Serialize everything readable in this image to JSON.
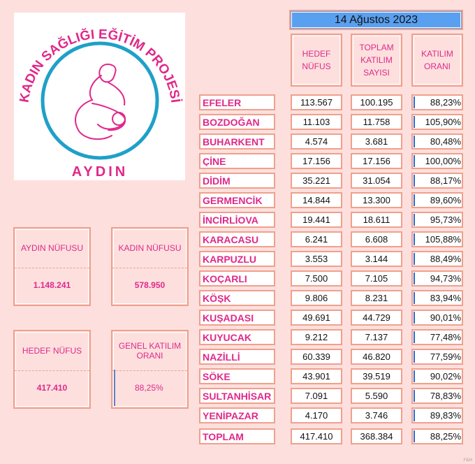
{
  "logo": {
    "title": "KADIN SAĞLIĞI EĞİTİM PROJESİ",
    "city": "AYDIN"
  },
  "cards": [
    {
      "label": "AYDIN NÜFUSU",
      "value": "1.148.241"
    },
    {
      "label": "KADIN NÜFUSU",
      "value": "578.950"
    },
    {
      "label": "HEDEF NÜFUS",
      "value": "417.410"
    }
  ],
  "overall": {
    "label": "GENEL KATILIM ORANI",
    "value": 88.25,
    "value_label": "88,25%"
  },
  "table": {
    "date": "14 Ağustos 2023",
    "headers": [
      "HEDEF NÜFUS",
      "TOPLAM KATILIM SAYISI",
      "KATILIM ORANI"
    ],
    "rows": [
      {
        "name": "EFELER",
        "target": "113.567",
        "total": "100.195",
        "rate": 88.23,
        "rate_label": "88,23%"
      },
      {
        "name": "BOZDOĞAN",
        "target": "11.103",
        "total": "11.758",
        "rate": 105.9,
        "rate_label": "105,90%"
      },
      {
        "name": "BUHARKENT",
        "target": "4.574",
        "total": "3.681",
        "rate": 80.48,
        "rate_label": "80,48%"
      },
      {
        "name": "ÇİNE",
        "target": "17.156",
        "total": "17.156",
        "rate": 100.0,
        "rate_label": "100,00%"
      },
      {
        "name": "DİDİM",
        "target": "35.221",
        "total": "31.054",
        "rate": 88.17,
        "rate_label": "88,17%"
      },
      {
        "name": "GERMENCİK",
        "target": "14.844",
        "total": "13.300",
        "rate": 89.6,
        "rate_label": "89,60%"
      },
      {
        "name": "İNCİRLİOVA",
        "target": "19.441",
        "total": "18.611",
        "rate": 95.73,
        "rate_label": "95,73%"
      },
      {
        "name": "KARACASU",
        "target": "6.241",
        "total": "6.608",
        "rate": 105.88,
        "rate_label": "105,88%"
      },
      {
        "name": "KARPUZLU",
        "target": "3.553",
        "total": "3.144",
        "rate": 88.49,
        "rate_label": "88,49%"
      },
      {
        "name": "KOÇARLI",
        "target": "7.500",
        "total": "7.105",
        "rate": 94.73,
        "rate_label": "94,73%"
      },
      {
        "name": "KÖŞK",
        "target": "9.806",
        "total": "8.231",
        "rate": 83.94,
        "rate_label": "83,94%"
      },
      {
        "name": "KUŞADASI",
        "target": "49.691",
        "total": "44.729",
        "rate": 90.01,
        "rate_label": "90,01%"
      },
      {
        "name": "KUYUCAK",
        "target": "9.212",
        "total": "7.137",
        "rate": 77.48,
        "rate_label": "77,48%"
      },
      {
        "name": "NAZİLLİ",
        "target": "60.339",
        "total": "46.820",
        "rate": 77.59,
        "rate_label": "77,59%"
      },
      {
        "name": "SÖKE",
        "target": "43.901",
        "total": "39.519",
        "rate": 90.02,
        "rate_label": "90,02%"
      },
      {
        "name": "SULTANHİSAR",
        "target": "7.091",
        "total": "5.590",
        "rate": 78.83,
        "rate_label": "78,83%"
      },
      {
        "name": "YENİPAZAR",
        "target": "4.170",
        "total": "3.746",
        "rate": 89.83,
        "rate_label": "89,83%"
      }
    ],
    "total": {
      "name": "TOPLAM",
      "target": "417.410",
      "total": "368.384",
      "rate": 88.25,
      "rate_label": "88,25%"
    }
  },
  "footer": "F&M"
}
